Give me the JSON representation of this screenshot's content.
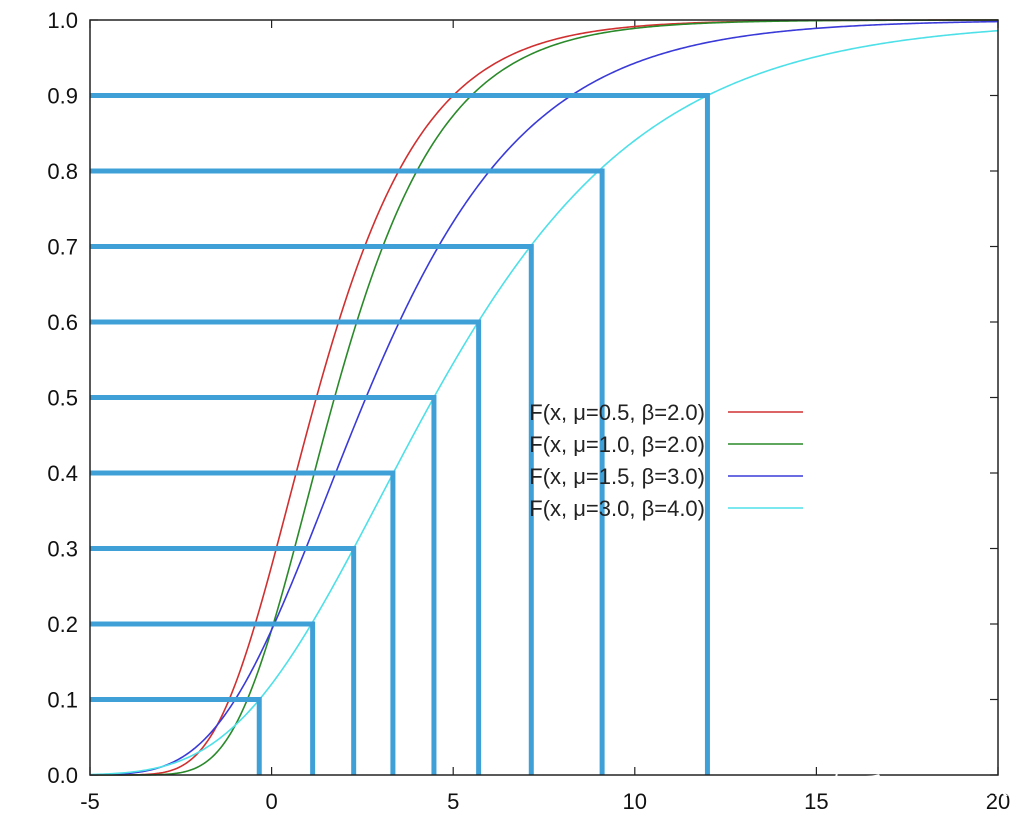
{
  "chart_data": {
    "type": "line",
    "title": "",
    "xlabel": "",
    "ylabel": "",
    "xlim": [
      -5,
      20
    ],
    "ylim": [
      0,
      1
    ],
    "x_ticks": [
      "-5",
      "0",
      "5",
      "10",
      "15",
      "20"
    ],
    "y_ticks": [
      "0.0",
      "0.1",
      "0.2",
      "0.3",
      "0.4",
      "0.5",
      "0.6",
      "0.7",
      "0.8",
      "0.9",
      "1.0"
    ],
    "grid": false,
    "legend_position": "center-right",
    "series": [
      {
        "name": "F(x, μ=0.5, β=2.0)",
        "color": "#d03030",
        "mu": 0.5,
        "beta": 2.0,
        "x": [
          -5,
          -2,
          0,
          1,
          2,
          3,
          4,
          5,
          7,
          10,
          15,
          20
        ],
        "y": [
          0.0,
          0.018,
          0.213,
          0.461,
          0.695,
          0.849,
          0.931,
          0.969,
          0.994,
          0.999,
          1.0,
          1.0
        ]
      },
      {
        "name": "F(x, μ=1.0, β=2.0)",
        "color": "#2a8a2a",
        "mu": 1.0,
        "beta": 2.0,
        "x": [
          -5,
          -2,
          0,
          1,
          2,
          3,
          4,
          5,
          7,
          10,
          15,
          20
        ],
        "y": [
          0.0,
          0.005,
          0.192,
          0.368,
          0.545,
          0.692,
          0.8,
          0.873,
          0.951,
          0.989,
          0.999,
          1.0
        ]
      },
      {
        "name": "F(x, μ=1.5, β=3.0)",
        "color": "#3a3ad8",
        "mu": 1.5,
        "beta": 3.0,
        "x": [
          -5,
          -2,
          0,
          1,
          2,
          3,
          4,
          5,
          7,
          10,
          15,
          20
        ],
        "y": [
          0.0,
          0.043,
          0.193,
          0.312,
          0.421,
          0.545,
          0.635,
          0.711,
          0.826,
          0.943,
          0.989,
          0.998
        ]
      },
      {
        "name": "F(x, μ=3.0, β=4.0)",
        "color": "#4ee0e8",
        "mu": 3.0,
        "beta": 4.0,
        "x": [
          -5,
          -2,
          0,
          1,
          2,
          3,
          4,
          5,
          7,
          10,
          15,
          20
        ],
        "y": [
          0.0,
          0.03,
          0.121,
          0.192,
          0.271,
          0.368,
          0.458,
          0.545,
          0.692,
          0.84,
          0.951,
          0.986
        ]
      }
    ],
    "quantile_guides": {
      "color": "#3fa0d8",
      "levels": [
        0.1,
        0.2,
        0.3,
        0.4,
        0.5,
        0.6,
        0.7,
        0.8,
        0.9
      ],
      "x_values": [
        -0.34,
        1.13,
        2.26,
        3.34,
        4.47,
        5.7,
        7.15,
        9.1,
        12.0
      ]
    }
  },
  "watermark": "知乎 @wwdok"
}
